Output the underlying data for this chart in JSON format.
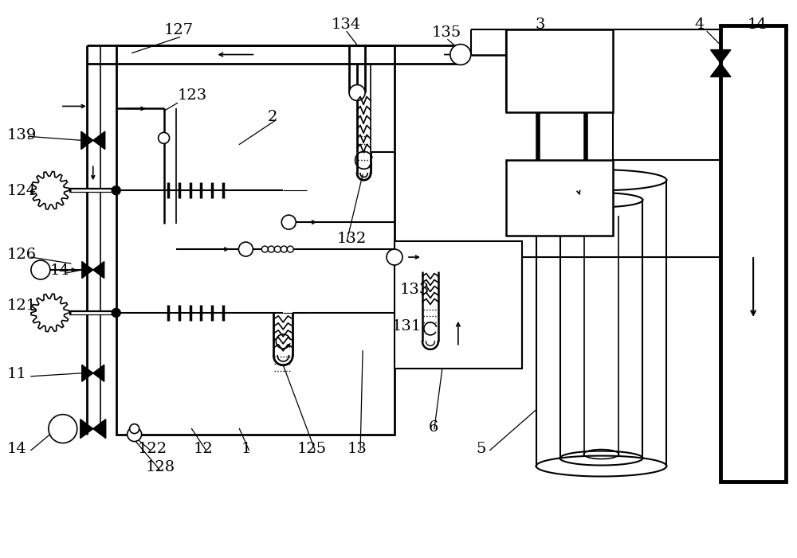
{
  "bg_color": "#ffffff",
  "lc": "#000000",
  "fig_w": 10.0,
  "fig_h": 7.01,
  "dpi": 100,
  "xlim": [
    0,
    10
  ],
  "ylim": [
    0,
    7.01
  ]
}
